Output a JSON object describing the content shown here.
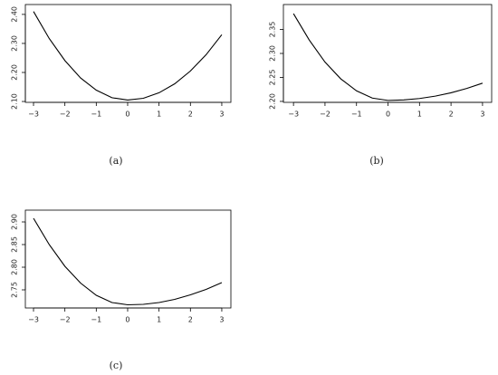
{
  "chart_data": [
    {
      "type": "line",
      "caption": "(a)",
      "x": [
        -3,
        -2.5,
        -2,
        -1.5,
        -1,
        -0.5,
        0,
        0.5,
        1,
        1.5,
        2,
        2.5,
        3
      ],
      "series": [
        {
          "color": "#000000",
          "values": [
            2.41,
            2.317,
            2.241,
            2.181,
            2.139,
            2.113,
            2.105,
            2.111,
            2.13,
            2.161,
            2.205,
            2.261,
            2.33
          ]
        }
      ],
      "xlim": [
        -3.26,
        3.29
      ],
      "xticks": [
        {
          "value": -3,
          "label": "−3"
        },
        {
          "value": -2,
          "label": "−2"
        },
        {
          "value": -1,
          "label": "−1"
        },
        0,
        1,
        2,
        3
      ],
      "ylim": [
        2.097,
        2.434
      ],
      "yticks": [
        {
          "value": 2.1,
          "label": "2.10"
        },
        {
          "value": 2.2,
          "label": "2.20"
        },
        {
          "value": 2.3,
          "label": "2.30"
        },
        {
          "value": 2.4,
          "label": "2.40"
        }
      ]
    },
    {
      "type": "line",
      "caption": "(b)",
      "x": [
        -3,
        -2.5,
        -2,
        -1.5,
        -1,
        -0.5,
        0,
        0.5,
        1,
        1.5,
        2,
        2.5,
        3
      ],
      "series": [
        {
          "color": "#000000",
          "values": [
            2.383,
            2.328,
            2.282,
            2.247,
            2.222,
            2.207,
            2.202,
            2.203,
            2.206,
            2.211,
            2.218,
            2.227,
            2.238
          ]
        }
      ],
      "xlim": [
        -3.32,
        3.29
      ],
      "xticks": [
        {
          "value": -3,
          "label": "−3"
        },
        {
          "value": -2,
          "label": "−2"
        },
        {
          "value": -1,
          "label": "−1"
        },
        0,
        1,
        2,
        3
      ],
      "ylim": [
        2.198,
        2.402
      ],
      "yticks": [
        {
          "value": 2.2,
          "label": "2.20"
        },
        2.25,
        {
          "value": 2.3,
          "label": "2.30"
        },
        2.35
      ]
    },
    {
      "type": "line",
      "caption": "(c)",
      "x": [
        -3,
        -2.5,
        -2,
        -1.5,
        -1,
        -0.5,
        0,
        0.5,
        1,
        1.5,
        2,
        2.5,
        3
      ],
      "series": [
        {
          "color": "#000000",
          "values": [
            2.908,
            2.85,
            2.802,
            2.765,
            2.738,
            2.722,
            2.717,
            2.718,
            2.722,
            2.729,
            2.739,
            2.751,
            2.766
          ]
        }
      ],
      "xlim": [
        -3.26,
        3.29
      ],
      "xticks": [
        {
          "value": -3,
          "label": "−3"
        },
        {
          "value": -2,
          "label": "−2"
        },
        {
          "value": -1,
          "label": "−1"
        },
        0,
        1,
        2,
        3
      ],
      "ylim": [
        2.71,
        2.926
      ],
      "yticks": [
        2.75,
        {
          "value": 2.8,
          "label": "2.80"
        },
        2.85,
        {
          "value": 2.9,
          "label": "2.90"
        }
      ]
    }
  ]
}
